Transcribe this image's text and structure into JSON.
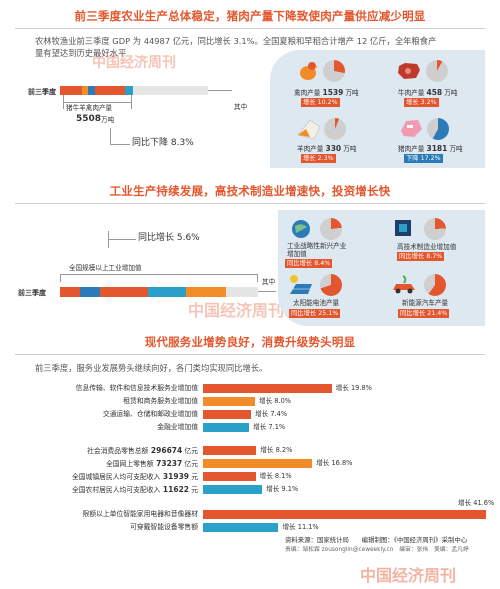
{
  "section1": {
    "title": "前三季度农业生产总体稳定，猪肉产量下降致使肉产量供应减少明显",
    "para_line1": "农林牧渔业前三季度 GDP 为 44987 亿元，同比增长 3.1%。全国夏粮和早稻合计增产 12 亿斤，全年粮食产",
    "para_line2": "量有望达到历史最好水平",
    "row_label": "前三季度",
    "pork_label": "猪牛羊禽肉产量",
    "pork_value": "5508",
    "pork_unit": "万吨",
    "pork_change": "同比下降 8.3%",
    "qizhong": "其中",
    "items": [
      {
        "name": "禽肉产量",
        "value": "1539",
        "unit": "万吨",
        "change": "增长 10.2%",
        "type": "up"
      },
      {
        "name": "牛肉产量",
        "value": "458",
        "unit": "万吨",
        "change": "增长 3.2%",
        "type": "up"
      },
      {
        "name": "羊肉产量",
        "value": "330",
        "unit": "万吨",
        "change": "增长 2.3%",
        "type": "up"
      },
      {
        "name": "猪肉产量",
        "value": "3181",
        "unit": "万吨",
        "change": "下降 17.2%",
        "type": "down"
      }
    ]
  },
  "section2": {
    "title": "工业生产持续发展，高技术制造业增速快，投资增长快",
    "growth_label": "同比增长 5.6%",
    "scale_label": "全国规模以上工业增加值",
    "row_label": "前三季度",
    "qizhong": "其中",
    "items": [
      {
        "name1": "工业战略性新兴产业",
        "name2": "增加值",
        "change": "同比增长 8.4%"
      },
      {
        "name1": "高技术制造业增加值",
        "name2": "",
        "change": "同比增长 8.7%"
      },
      {
        "name1": "太阳能电池产量",
        "name2": "",
        "change": "同比增长 25.1%"
      },
      {
        "name1": "新能源汽车产量",
        "name2": "",
        "change": "同比增长 21.4%"
      }
    ]
  },
  "section3": {
    "title": "现代服务业增势良好，消费升级势头明显",
    "para": "前三季度，服务业发展势头继续向好，各门类均实现同比增长。",
    "group1": [
      {
        "label": "信息传输、软件和信息技术服务业增加值",
        "change": "增长 19.8%",
        "pct": 19.8,
        "color": "#e4572e"
      },
      {
        "label": "租赁和商务服务业增加值",
        "change": "增长 8.0%",
        "pct": 8.0,
        "color": "#f28c28"
      },
      {
        "label": "交通运输、仓储和邮政业增加值",
        "change": "增长 7.4%",
        "pct": 7.4,
        "color": "#e4572e"
      },
      {
        "label": "金融业增加值",
        "change": "增长 7.1%",
        "pct": 7.1,
        "color": "#2ba0c9"
      }
    ],
    "group2": [
      {
        "label": "社会消费品零售总额",
        "value": "296674",
        "unit": "亿元",
        "change": "增长 8.2%",
        "pct": 8.2,
        "color": "#e4572e"
      },
      {
        "label": "全国网上零售额",
        "value": "73237",
        "unit": "亿元",
        "change": "增长 16.8%",
        "pct": 16.8,
        "color": "#f28c28"
      },
      {
        "label": "全国城镇居民人均可支配收入",
        "value": "31939",
        "unit": "元",
        "change": "增长 8.1%",
        "pct": 8.1,
        "color": "#e4572e"
      },
      {
        "label": "全国农村居民人均可支配收入",
        "value": "11622",
        "unit": "元",
        "change": "增长 9.1%",
        "pct": 9.1,
        "color": "#2ba0c9"
      }
    ],
    "group3": [
      {
        "label": "限额以上单位智能家用电器和音像器材",
        "change": "增长 41.6%",
        "pct": 41.6,
        "color": "#e4572e"
      },
      {
        "label": "可穿戴智能设备零售额",
        "change": "增长 11.1%",
        "pct": 11.1,
        "color": "#2ba0c9"
      }
    ]
  },
  "footer": {
    "source": "资料来源：国家统计局　　编辑制图：《中国经济周刊》采制中心",
    "credits": "责编：邹松霖 zousonglin@ceweekly.cn　编审：张伟　美编：孟凡婷"
  },
  "watermark": "中国经济周刊",
  "colors": {
    "accent": "#e4572e",
    "orange": "#f28c28",
    "blue": "#2b7bb9",
    "cyan": "#2ba0c9",
    "panel": "#dde8f0"
  }
}
